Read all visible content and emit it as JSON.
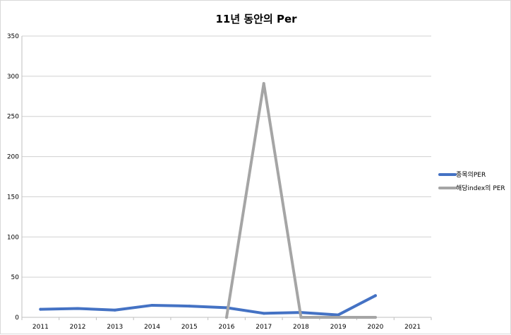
{
  "chart_data": {
    "type": "line",
    "title": "11년 동안의 Per",
    "xlabel": "",
    "ylabel": "",
    "categories": [
      "2011",
      "2012",
      "2013",
      "2014",
      "2015",
      "2016",
      "2017",
      "2018",
      "2019",
      "2020",
      "2021"
    ],
    "ylim": [
      0,
      350
    ],
    "yticks": [
      0,
      50,
      100,
      150,
      200,
      250,
      300,
      350
    ],
    "grid": true,
    "legend_position": "right",
    "series": [
      {
        "name": "종목의PER",
        "color": "#4472c4",
        "values": [
          10,
          11,
          9,
          15,
          14,
          12,
          5,
          6,
          3,
          27,
          null
        ]
      },
      {
        "name": "해당index의 PER",
        "color": "#a5a5a5",
        "values": [
          null,
          null,
          null,
          null,
          null,
          0,
          291,
          0,
          0,
          0,
          null
        ]
      }
    ]
  }
}
